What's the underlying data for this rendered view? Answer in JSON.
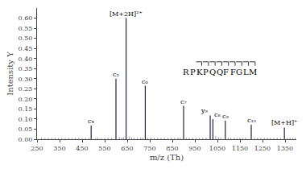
{
  "chart_data": {
    "type": "stem",
    "xlabel": "m/z (Th)",
    "ylabel": "Intensity Y",
    "xlim": [
      250,
      1400
    ],
    "ylim": [
      0,
      0.65
    ],
    "xticks": [
      250,
      350,
      450,
      550,
      650,
      750,
      850,
      950,
      1050,
      1150,
      1250,
      1350
    ],
    "yticks": [
      {
        "value": 0,
        "label": "0.00"
      },
      0.05,
      {
        "value": 0.1,
        "label": "0.10"
      },
      0.15,
      {
        "value": 0.2,
        "label": "0.20"
      },
      0.25,
      {
        "value": 0.3,
        "label": "0.30"
      },
      0.35,
      {
        "value": 0.4,
        "label": "0.40"
      },
      0.45,
      {
        "value": 0.5,
        "label": "0.50"
      },
      0.55,
      {
        "value": 0.6,
        "label": "0.60"
      }
    ],
    "grid": false,
    "color": "#22224a",
    "series": [
      {
        "x": [
          270,
          285,
          300,
          315,
          330,
          345,
          360,
          375,
          390,
          405,
          420,
          435,
          450,
          465,
          480,
          510,
          520,
          535,
          550,
          565,
          580,
          615,
          625,
          633,
          660,
          670,
          680,
          695,
          710,
          720,
          740,
          755,
          770,
          785,
          800,
          815,
          830,
          845,
          860,
          875,
          885,
          912,
          925,
          940,
          955,
          970,
          985,
          1000,
          1042,
          1055,
          1065,
          1098,
          1110,
          1125,
          1138,
          1150,
          1162,
          1175,
          1215,
          1228,
          1242,
          1258,
          1272,
          1285,
          1300,
          1315,
          1330,
          1360,
          1372,
          1385,
          1395
        ],
        "values": [
          0.008,
          0.006,
          0.007,
          0.006,
          0.007,
          0.006,
          0.007,
          0.006,
          0.007,
          0.006,
          0.007,
          0.006,
          0.006,
          0.007,
          0.006,
          0.006,
          0.007,
          0.006,
          0.007,
          0.009,
          0.006,
          0.012,
          0.008,
          0.01,
          0.014,
          0.008,
          0.007,
          0.008,
          0.009,
          0.007,
          0.008,
          0.009,
          0.007,
          0.008,
          0.007,
          0.008,
          0.007,
          0.008,
          0.007,
          0.008,
          0.007,
          0.008,
          0.007,
          0.008,
          0.007,
          0.007,
          0.008,
          0.009,
          0.015,
          0.01,
          0.008,
          0.008,
          0.007,
          0.008,
          0.007,
          0.008,
          0.007,
          0.008,
          0.007,
          0.008,
          0.007,
          0.007,
          0.008,
          0.007,
          0.007,
          0.008,
          0.007,
          0.007,
          0.008,
          0.007,
          0.007
        ]
      },
      {
        "x": [
          490,
          600,
          645,
          730,
          900,
          1018,
          1030,
          1085,
          1200,
          1347
        ],
        "values": [
          0.068,
          0.3,
          0.6,
          0.265,
          0.165,
          0.118,
          0.1,
          0.092,
          0.072,
          0.058
        ],
        "labels": [
          "c₄",
          "c₅",
          "[M+2H]²⁺",
          "c₆",
          "c₇",
          "y₉",
          "c₈",
          "c₉",
          "c₁₀",
          "[M+H]⁺"
        ]
      }
    ],
    "annotations": [
      "RPKPQQFFGLM"
    ]
  }
}
